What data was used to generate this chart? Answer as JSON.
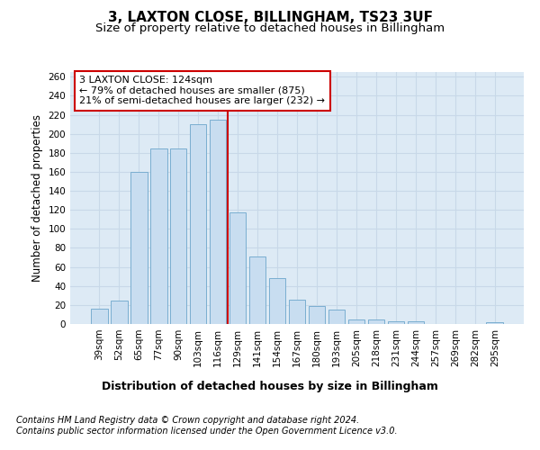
{
  "title": "3, LAXTON CLOSE, BILLINGHAM, TS23 3UF",
  "subtitle": "Size of property relative to detached houses in Billingham",
  "xlabel": "Distribution of detached houses by size in Billingham",
  "ylabel": "Number of detached properties",
  "categories": [
    "39sqm",
    "52sqm",
    "65sqm",
    "77sqm",
    "90sqm",
    "103sqm",
    "116sqm",
    "129sqm",
    "141sqm",
    "154sqm",
    "167sqm",
    "180sqm",
    "193sqm",
    "205sqm",
    "218sqm",
    "231sqm",
    "244sqm",
    "257sqm",
    "269sqm",
    "282sqm",
    "295sqm"
  ],
  "values": [
    16,
    25,
    160,
    185,
    185,
    210,
    215,
    117,
    71,
    48,
    26,
    19,
    15,
    5,
    5,
    3,
    3,
    0,
    0,
    0,
    2
  ],
  "bar_color": "#c8ddf0",
  "bar_edge_color": "#7aaed0",
  "grid_color": "#c8d8e8",
  "bg_color": "#ddeaf5",
  "vline_color": "#cc0000",
  "vline_bin_index": 6,
  "annotation_text": "3 LAXTON CLOSE: 124sqm\n← 79% of detached houses are smaller (875)\n21% of semi-detached houses are larger (232) →",
  "annotation_box_edgecolor": "#cc0000",
  "ylim_max": 265,
  "yticks": [
    0,
    20,
    40,
    60,
    80,
    100,
    120,
    140,
    160,
    180,
    200,
    220,
    240,
    260
  ],
  "footer_line1": "Contains HM Land Registry data © Crown copyright and database right 2024.",
  "footer_line2": "Contains public sector information licensed under the Open Government Licence v3.0.",
  "title_fontsize": 11,
  "subtitle_fontsize": 9.5,
  "tick_fontsize": 7.5,
  "ylabel_fontsize": 8.5,
  "xlabel_fontsize": 9,
  "annotation_fontsize": 8,
  "footer_fontsize": 7
}
